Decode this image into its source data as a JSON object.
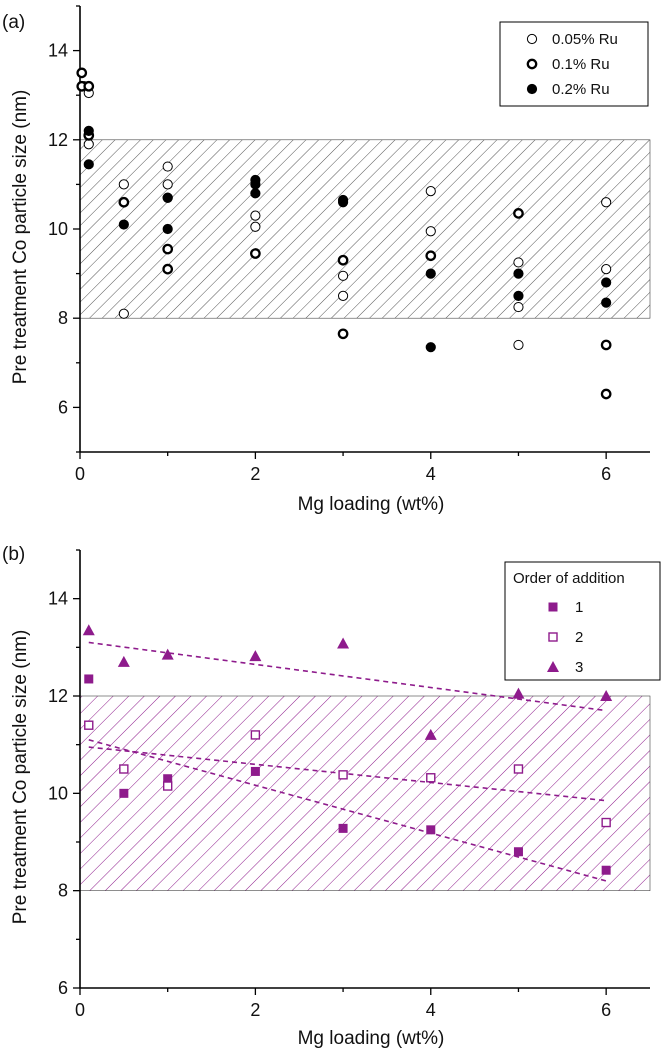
{
  "chart_data": [
    {
      "panel_label": "(a)",
      "type": "scatter",
      "xlabel": "Mg loading (wt%)",
      "ylabel": "Pre treatment Co particle size (nm)",
      "xlim": [
        0,
        6.5
      ],
      "ylim": [
        5,
        15
      ],
      "xticks": [
        0,
        2,
        4,
        6
      ],
      "yticks": [
        6,
        8,
        10,
        12,
        14
      ],
      "shaded_band": {
        "y": [
          8,
          12
        ],
        "pattern": "hatched",
        "color": "#555555"
      },
      "legend_placement": "top-right",
      "series": [
        {
          "name": "0.05% Ru",
          "marker": "open-circle",
          "color": "#000000",
          "points": [
            [
              0.05,
              13.2
            ],
            [
              0.1,
              13.05
            ],
            [
              0.1,
              11.9
            ],
            [
              0.5,
              11.0
            ],
            [
              0.5,
              8.1
            ],
            [
              1,
              11.4
            ],
            [
              1,
              11.0
            ],
            [
              1,
              10.7
            ],
            [
              2,
              10.3
            ],
            [
              2,
              10.05
            ],
            [
              3,
              8.95
            ],
            [
              3,
              8.5
            ],
            [
              4,
              10.85
            ],
            [
              4,
              9.95
            ],
            [
              5,
              9.25
            ],
            [
              5,
              8.25
            ],
            [
              5,
              7.4
            ],
            [
              6,
              10.6
            ],
            [
              6,
              9.1
            ]
          ]
        },
        {
          "name": "0.1% Ru",
          "marker": "thick-open-circle",
          "color": "#000000",
          "points": [
            [
              0.02,
              13.5
            ],
            [
              0.02,
              13.2
            ],
            [
              0.1,
              13.2
            ],
            [
              0.1,
              12.1
            ],
            [
              0.5,
              10.6
            ],
            [
              1,
              9.55
            ],
            [
              1,
              9.1
            ],
            [
              2,
              9.45
            ],
            [
              3,
              9.3
            ],
            [
              3,
              7.65
            ],
            [
              4,
              9.4
            ],
            [
              5,
              10.35
            ],
            [
              6,
              7.4
            ],
            [
              6,
              6.3
            ]
          ]
        },
        {
          "name": "0.2% Ru",
          "marker": "filled-circle",
          "color": "#000000",
          "points": [
            [
              0.1,
              12.2
            ],
            [
              0.1,
              11.45
            ],
            [
              0.5,
              10.1
            ],
            [
              1,
              10.7
            ],
            [
              1,
              10.0
            ],
            [
              2,
              11.1
            ],
            [
              2,
              11.0
            ],
            [
              2,
              10.8
            ],
            [
              3,
              10.65
            ],
            [
              3,
              10.6
            ],
            [
              4,
              9.0
            ],
            [
              4,
              7.35
            ],
            [
              5,
              9.0
            ],
            [
              5,
              8.5
            ],
            [
              6,
              8.8
            ],
            [
              6,
              8.35
            ]
          ]
        }
      ]
    },
    {
      "panel_label": "(b)",
      "type": "scatter",
      "xlabel": "Mg loading (wt%)",
      "ylabel": "Pre treatment Co particle size (nm)",
      "xlim": [
        0,
        6.5
      ],
      "ylim": [
        6,
        15
      ],
      "xticks": [
        0,
        2,
        4,
        6
      ],
      "yticks": [
        6,
        8,
        10,
        12,
        14
      ],
      "shaded_band": {
        "y": [
          8,
          12
        ],
        "pattern": "hatched",
        "color": "#8e1b8c"
      },
      "legend_placement": "top-right",
      "legend_title": "Order of addition",
      "series": [
        {
          "name": "1",
          "marker": "filled-square",
          "color": "#8e1b8c",
          "points": [
            [
              0.1,
              12.35
            ],
            [
              0.5,
              10.0
            ],
            [
              1,
              10.3
            ],
            [
              2,
              10.45
            ],
            [
              3,
              9.28
            ],
            [
              4,
              9.25
            ],
            [
              5,
              8.8
            ],
            [
              6,
              8.42
            ]
          ],
          "trendline": [
            [
              0.1,
              11.1
            ],
            [
              6,
              8.2
            ]
          ]
        },
        {
          "name": "2",
          "marker": "open-square",
          "color": "#8e1b8c",
          "points": [
            [
              0.1,
              11.4
            ],
            [
              0.5,
              10.5
            ],
            [
              1,
              10.15
            ],
            [
              2,
              11.2
            ],
            [
              3,
              10.38
            ],
            [
              4,
              10.32
            ],
            [
              5,
              10.5
            ],
            [
              6,
              9.4
            ]
          ],
          "trendline": [
            [
              0.1,
              10.95
            ],
            [
              6,
              9.85
            ]
          ]
        },
        {
          "name": "3",
          "marker": "filled-triangle",
          "color": "#8e1b8c",
          "points": [
            [
              0.1,
              13.35
            ],
            [
              0.5,
              12.7
            ],
            [
              1,
              12.85
            ],
            [
              2,
              12.82
            ],
            [
              3,
              13.08
            ],
            [
              4,
              11.2
            ],
            [
              5,
              12.05
            ],
            [
              6,
              12.0
            ]
          ],
          "trendline": [
            [
              0.1,
              13.1
            ],
            [
              6,
              11.7
            ]
          ]
        }
      ]
    }
  ]
}
